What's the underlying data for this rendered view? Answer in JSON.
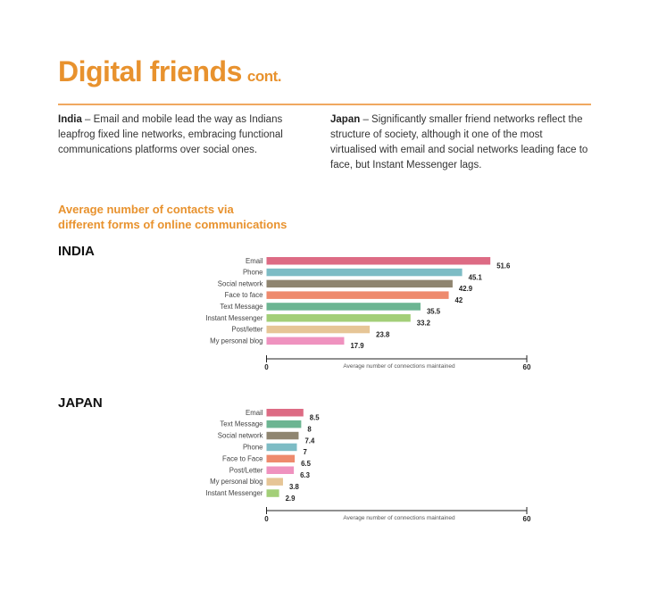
{
  "header": {
    "title": "Digital friends",
    "title_suffix": "cont."
  },
  "intro": {
    "india_label": "India",
    "india_text": " – Email and mobile lead the way as Indians leapfrog fixed line networks, embracing functional communications platforms over social ones.",
    "japan_label": "Japan",
    "japan_text": " – Significantly smaller friend networks reflect the structure of society, although it one of the most virtualised with email and social networks leading face to face, but Instant Messenger lags."
  },
  "subtitle_line1": "Average number of contacts via",
  "subtitle_line2": "different forms of online communications",
  "chart_data": [
    {
      "type": "bar",
      "orientation": "horizontal",
      "title": "INDIA",
      "xlabel": "Average number of connections maintained",
      "xlim": [
        0,
        60
      ],
      "x_ticks": [
        "0",
        "60"
      ],
      "categories": [
        "Email",
        "Phone",
        "Social network",
        "Face to face",
        "Text Message",
        "Instant Messenger",
        "Post/letter",
        "My personal blog"
      ],
      "values": [
        51.6,
        45.1,
        42.9,
        42,
        35.5,
        33.2,
        23.8,
        17.9
      ],
      "value_labels": [
        "51.6",
        "45.1",
        "42.9",
        "42",
        "35.5",
        "33.2",
        "23.8",
        "17.9"
      ],
      "colors": [
        "#dd6b84",
        "#7dbcc5",
        "#8f8570",
        "#ee8a6d",
        "#6cb592",
        "#a3cf78",
        "#e6c596",
        "#ef92bf"
      ]
    },
    {
      "type": "bar",
      "orientation": "horizontal",
      "title": "JAPAN",
      "xlabel": "Average number of connections maintained",
      "xlim": [
        0,
        60
      ],
      "x_ticks": [
        "0",
        "60"
      ],
      "categories": [
        "Email",
        "Text Message",
        "Social network",
        "Phone",
        "Face to Face",
        "Post/Letter",
        "My personal blog",
        "Instant Messenger"
      ],
      "values": [
        8.5,
        8,
        7.4,
        7,
        6.5,
        6.3,
        3.8,
        2.9
      ],
      "value_labels": [
        "8.5",
        "8",
        "7.4",
        "7",
        "6.5",
        "6.3",
        "3.8",
        "2.9"
      ],
      "colors": [
        "#dd6b84",
        "#6cb592",
        "#8f8570",
        "#7dbcc5",
        "#ee8a6d",
        "#ef92bf",
        "#e6c596",
        "#a3cf78"
      ]
    }
  ]
}
